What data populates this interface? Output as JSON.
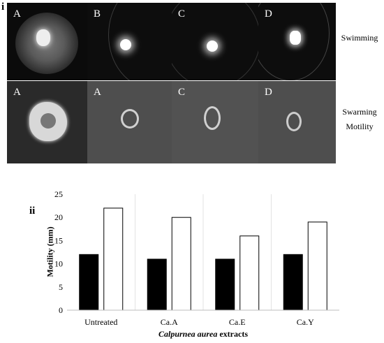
{
  "panel_i": {
    "label": "i",
    "row_labels": {
      "swimming": "Swimming",
      "swarming_line1": "Swarming",
      "swarming_line2": "Motility"
    },
    "swimming_letters": [
      "A",
      "B",
      "C",
      "D"
    ],
    "swarming_letters": [
      "A",
      "A",
      "C",
      "D"
    ]
  },
  "panel_ii": {
    "label": "ii"
  },
  "chart_data": {
    "type": "bar",
    "categories": [
      "Untreated",
      "Ca.A",
      "Ca.E",
      "Ca.Y"
    ],
    "series": [
      {
        "values": [
          12,
          11,
          11,
          12
        ],
        "color": "#000000"
      },
      {
        "values": [
          22,
          20,
          16,
          19
        ],
        "color": "#ffffff"
      }
    ],
    "ylabel": "Motility (mm)",
    "xlabel_italic": "Calpurnea aurea",
    "xlabel_rest": " extracts",
    "ylim": [
      0,
      25
    ],
    "yticks": [
      0,
      5,
      10,
      15,
      20,
      25
    ],
    "grid": false
  }
}
